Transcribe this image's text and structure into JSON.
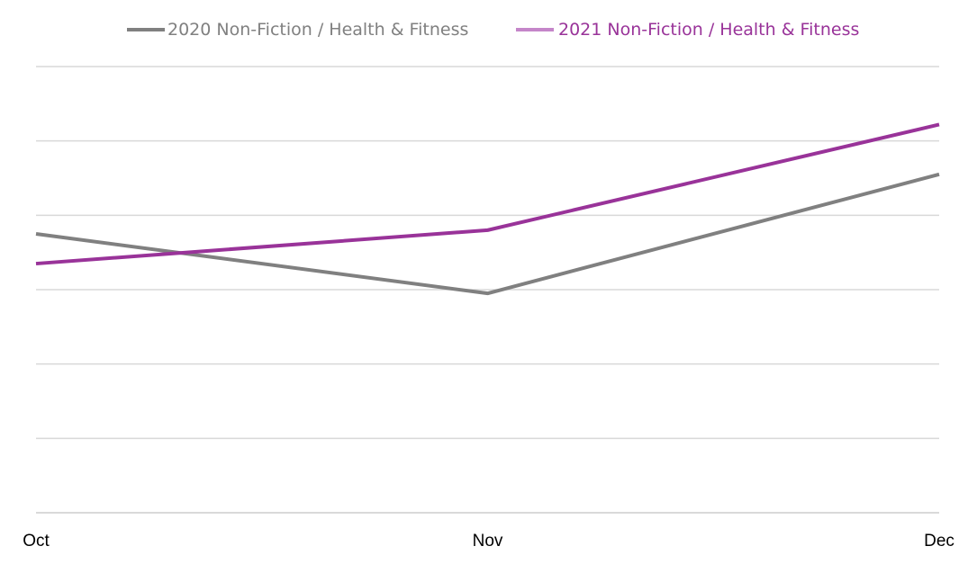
{
  "chart_data": {
    "type": "line",
    "title": "",
    "xlabel": "",
    "ylabel": "",
    "categories": [
      "Oct",
      "Nov",
      "Dec"
    ],
    "ylim": [
      0,
      6
    ],
    "grid": true,
    "legend_placement": "top-center",
    "series": [
      {
        "name": "2020 Non-Fiction / Health & Fitness",
        "values": [
          3.75,
          2.95,
          4.55
        ],
        "color": "#808080",
        "legend_text_color": "#808080",
        "legend_swatch_color": "#808080"
      },
      {
        "name": "2021 Non-Fiction / Health & Fitness",
        "values": [
          3.35,
          3.8,
          5.22
        ],
        "color": "#993399",
        "legend_text_color": "#993399",
        "legend_swatch_color": "#c586c9"
      }
    ],
    "gridline_color": "#d9d9d9"
  }
}
